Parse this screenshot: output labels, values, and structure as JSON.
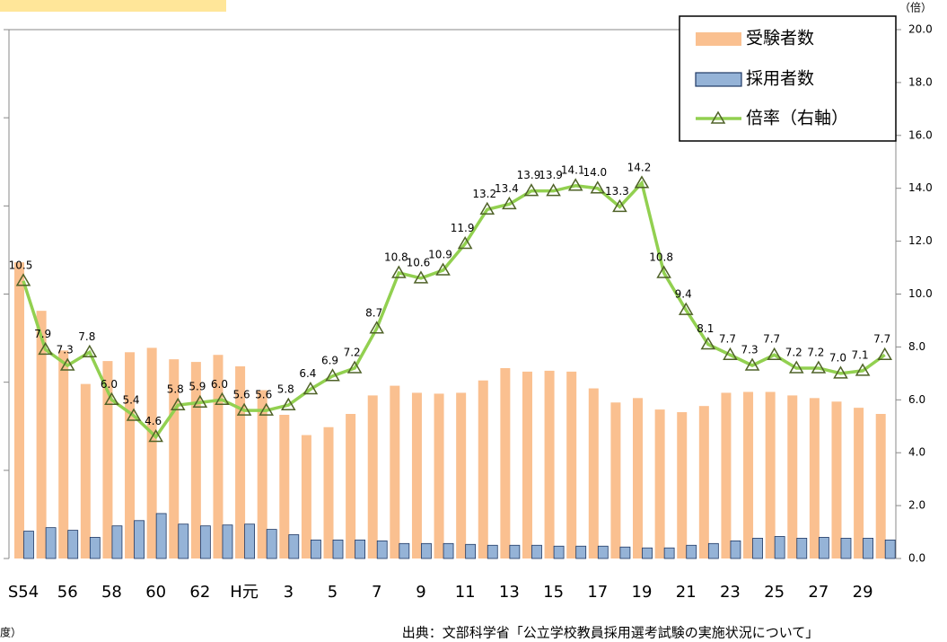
{
  "chart_data": {
    "type": "bar_line",
    "y2_label": "（倍）",
    "source": "出典：文部科学省「公立学校教員採用選考試験の実施状況について」",
    "footnote": "度）",
    "legend": "upper right",
    "categories": [
      "S54",
      null,
      "56",
      null,
      "58",
      null,
      "60",
      null,
      "62",
      null,
      "H元",
      null,
      "3",
      null,
      "5",
      null,
      "7",
      null,
      "9",
      null,
      "11",
      null,
      "13",
      null,
      "15",
      null,
      "17",
      null,
      "19",
      null,
      "21",
      null,
      "23",
      null,
      "25",
      null,
      "27",
      null,
      "29",
      null
    ],
    "ylim": [
      0,
      60000
    ],
    "yticks": [
      0,
      10000,
      20000,
      30000,
      40000,
      50000,
      60000
    ],
    "y2lim": [
      0,
      20
    ],
    "y2ticks": [
      {
        "value": 0,
        "label": "0.0"
      },
      {
        "value": 2,
        "label": "2.0"
      },
      {
        "value": 4,
        "label": "4.0"
      },
      {
        "value": 6,
        "label": "6.0"
      },
      {
        "value": 8,
        "label": "8.0"
      },
      {
        "value": 10,
        "label": "10.0"
      },
      {
        "value": 12,
        "label": "12.0"
      },
      {
        "value": 14,
        "label": "14.0"
      },
      {
        "value": 16,
        "label": "16.0"
      },
      {
        "value": 18,
        "label": "18.0"
      },
      {
        "value": 20,
        "label": "20.0"
      }
    ],
    "series": [
      {
        "name": "受験者数",
        "color": "#fac090",
        "values": [
          33600,
          28100,
          23600,
          19800,
          22400,
          23400,
          23900,
          22600,
          22300,
          23100,
          21800,
          19100,
          16300,
          14000,
          14900,
          16400,
          18500,
          19600,
          18800,
          18700,
          18800,
          20200,
          21600,
          21200,
          21300,
          21200,
          19300,
          17700,
          18200,
          16900,
          16600,
          17300,
          18800,
          18900,
          18900,
          18500,
          18200,
          17800,
          17100,
          16400
        ]
      },
      {
        "name": "採用者数",
        "color": "#95b3d7",
        "values": [
          3100,
          3500,
          3200,
          2400,
          3700,
          4300,
          5100,
          3900,
          3700,
          3800,
          3900,
          3300,
          2700,
          2100,
          2100,
          2100,
          2000,
          1700,
          1700,
          1700,
          1600,
          1500,
          1500,
          1500,
          1400,
          1400,
          1400,
          1300,
          1200,
          1200,
          1500,
          1700,
          2000,
          2300,
          2500,
          2300,
          2400,
          2300,
          2300,
          2100
        ]
      },
      {
        "name": "倍率（右軸）",
        "color": "#92d050",
        "axis": "y2",
        "values": [
          10.5,
          7.9,
          7.3,
          7.8,
          6,
          5.4,
          4.6,
          5.8,
          5.9,
          6,
          5.6,
          5.6,
          5.8,
          6.4,
          6.9,
          7.2,
          8.7,
          10.8,
          10.6,
          10.9,
          11.9,
          13.2,
          13.4,
          13.9,
          13.9,
          14.1,
          14,
          13.3,
          14.2,
          10.8,
          9.4,
          8.1,
          7.7,
          7.3,
          7.7,
          7.2,
          7.2,
          7,
          7.1,
          7.7
        ],
        "value_labels": [
          "10.5",
          "7.9",
          "7.3",
          "7.8",
          "6.0",
          "5.4",
          "4.6",
          "5.8",
          "5.9",
          "6.0",
          "5.6",
          "5.6",
          "5.8",
          "6.4",
          "6.9",
          "7.2",
          "8.7",
          "10.8",
          "10.6",
          "10.9",
          "11.9",
          "13.2",
          "13.4",
          "13.9",
          "13.9",
          "14.1",
          "14.0",
          "13.3",
          "14.2",
          "10.8",
          "9.4",
          "8.1",
          "7.7",
          "7.3",
          "7.7",
          "7.2",
          "7.2",
          "7.0",
          "7.1",
          "7.7"
        ]
      }
    ]
  }
}
